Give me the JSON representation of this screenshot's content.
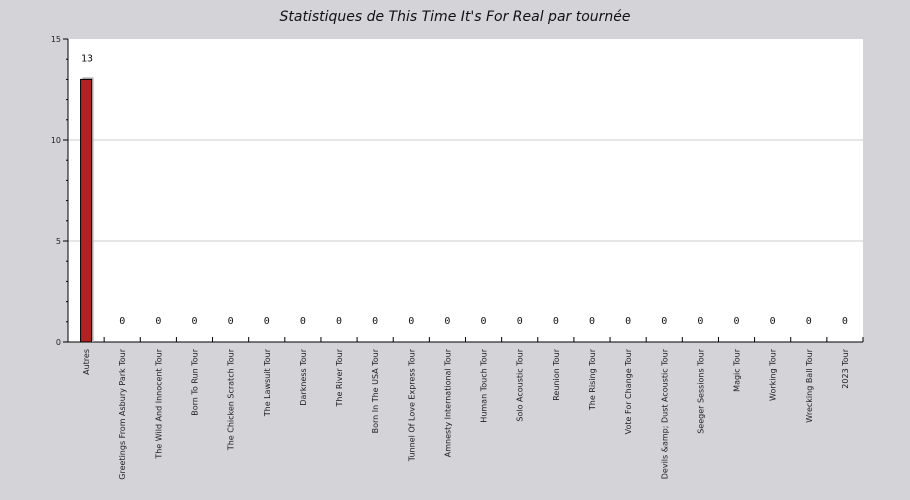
{
  "chart_data": {
    "type": "bar",
    "title": "Statistiques de This Time It's For Real par tournée",
    "xlabel": "",
    "ylabel": "",
    "ylim": [
      0,
      15
    ],
    "yticks": [
      0,
      5,
      10,
      15
    ],
    "grid": true,
    "legend": "none",
    "colors": {
      "bar": "#b22222",
      "bar_shadow": "#b0b0b0",
      "plot_bg": "#ffffff",
      "page_bg": "#d4d3d8",
      "grid": "#cccccc"
    },
    "categories": [
      "Autres",
      "Greetings From Asbury Park Tour",
      "The Wild And Innocent Tour",
      "Born To Run Tour",
      "The Chicken Scratch Tour",
      "The Lawsuit Tour",
      "Darkness Tour",
      "The River Tour",
      "Born In The USA Tour",
      "Tunnel Of Love Express Tour",
      "Amnesty International Tour",
      "Human Touch Tour",
      "Solo Acoustic Tour",
      "Reunion Tour",
      "The Rising Tour",
      "Vote For Change Tour",
      "Devils &amp; Dust Acoustic Tour",
      "Seeger Sessions Tour",
      "Magic Tour",
      "Working Tour",
      "Wrecking Ball Tour",
      "2023 Tour"
    ],
    "values": [
      13,
      0,
      0,
      0,
      0,
      0,
      0,
      0,
      0,
      0,
      0,
      0,
      0,
      0,
      0,
      0,
      0,
      0,
      0,
      0,
      0,
      0
    ],
    "value_labels": [
      "13",
      "0",
      "0",
      "0",
      "0",
      "0",
      "0",
      "0",
      "0",
      "0",
      "0",
      "0",
      "0",
      "0",
      "0",
      "0",
      "0",
      "0",
      "0",
      "0",
      "0",
      "0"
    ]
  }
}
